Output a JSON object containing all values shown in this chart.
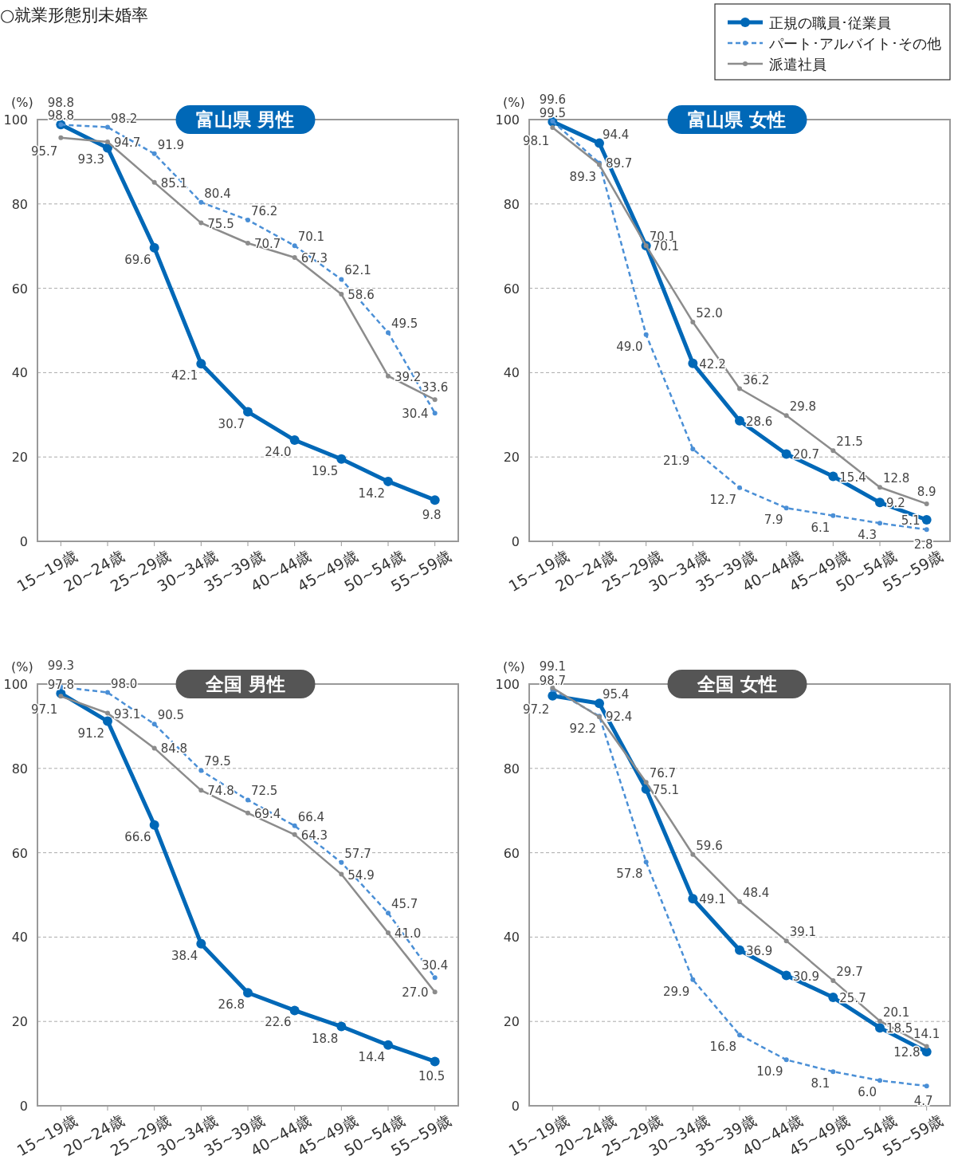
{
  "chart_data": [
    {
      "type": "line",
      "title": "富山県 男性",
      "ylabel": "(%)",
      "annotations": [
        "○就業形態別未婚率"
      ],
      "legend": "top right",
      "categories": [
        "15~19歳",
        "20~24歳",
        "25~29歳",
        "30~34歳",
        "35~39歳",
        "40~44歳",
        "45~49歳",
        "50~54歳",
        "55~59歳"
      ],
      "ylim": [
        0,
        100
      ],
      "yticks": [
        0,
        20,
        40,
        60,
        80,
        100
      ],
      "grid": "y",
      "marker": "circle",
      "series": [
        {
          "name": "正規の職員･従業員",
          "color": "#0068b7",
          "line_style": "solid",
          "values": [
            98.8,
            93.3,
            69.6,
            42.1,
            30.7,
            24.0,
            19.5,
            14.2,
            9.8
          ],
          "value_labels": [
            "98.8",
            "93.3",
            "69.6",
            "42.1",
            "30.7",
            "24.0",
            "19.5",
            "14.2",
            "9.8"
          ]
        },
        {
          "name": "パート･アルバイト･その他",
          "color": "#4a8fd6",
          "line_style": "dashed",
          "values": [
            98.8,
            98.2,
            91.9,
            80.4,
            76.2,
            70.1,
            62.1,
            49.5,
            30.4
          ],
          "value_labels": [
            "98.8",
            "98.2",
            "91.9",
            "80.4",
            "76.2",
            "70.1",
            "62.1",
            "49.5",
            "30.4"
          ]
        },
        {
          "name": "派遣社員",
          "color": "#8c8c8c",
          "line_style": "solid",
          "values": [
            95.7,
            94.7,
            85.1,
            75.5,
            70.7,
            67.3,
            58.6,
            39.2,
            33.6
          ],
          "value_labels": [
            "95.7",
            "94.7",
            "85.1",
            "75.5",
            "70.7",
            "67.3",
            "58.6",
            "39.2",
            "33.6"
          ]
        }
      ]
    },
    {
      "type": "line",
      "title": "富山県 女性",
      "ylabel": "(%)",
      "categories": [
        "15~19歳",
        "20~24歳",
        "25~29歳",
        "30~34歳",
        "35~39歳",
        "40~44歳",
        "45~49歳",
        "50~54歳",
        "55~59歳"
      ],
      "ylim": [
        0,
        100
      ],
      "yticks": [
        0,
        20,
        40,
        60,
        80,
        100
      ],
      "grid": "y",
      "marker": "circle",
      "series": [
        {
          "color": "#0068b7",
          "line_style": "solid",
          "values": [
            99.5,
            94.4,
            70.1,
            42.2,
            28.6,
            20.7,
            15.4,
            9.2,
            5.1
          ],
          "value_labels": [
            "99.5",
            "94.4",
            "70.1",
            "42.2",
            "28.6",
            "20.7",
            "15.4",
            "9.2",
            "5.1"
          ]
        },
        {
          "color": "#4a8fd6",
          "line_style": "dashed",
          "values": [
            99.6,
            89.7,
            49.0,
            21.9,
            12.7,
            7.9,
            6.1,
            4.3,
            2.8
          ],
          "value_labels": [
            "99.6",
            "89.7",
            "49.0",
            "21.9",
            "12.7",
            "7.9",
            "6.1",
            "4.3",
            "2.8"
          ]
        },
        {
          "color": "#8c8c8c",
          "line_style": "solid",
          "values": [
            98.1,
            89.3,
            70.1,
            52.0,
            36.2,
            29.8,
            21.5,
            12.8,
            8.9
          ],
          "value_labels": [
            "98.1",
            "89.3",
            "70.1",
            "52.0",
            "36.2",
            "29.8",
            "21.5",
            "12.8",
            "8.9"
          ]
        }
      ]
    },
    {
      "type": "line",
      "title": "全国 男性",
      "ylabel": "(%)",
      "categories": [
        "15~19歳",
        "20~24歳",
        "25~29歳",
        "30~34歳",
        "35~39歳",
        "40~44歳",
        "45~49歳",
        "50~54歳",
        "55~59歳"
      ],
      "ylim": [
        0,
        100
      ],
      "yticks": [
        0,
        20,
        40,
        60,
        80,
        100
      ],
      "grid": "y",
      "marker": "circle",
      "series": [
        {
          "color": "#0068b7",
          "line_style": "solid",
          "values": [
            97.8,
            91.2,
            66.6,
            38.4,
            26.8,
            22.6,
            18.8,
            14.4,
            10.5
          ],
          "value_labels": [
            "97.8",
            "91.2",
            "66.6",
            "38.4",
            "26.8",
            "22.6",
            "18.8",
            "14.4",
            "10.5"
          ]
        },
        {
          "color": "#4a8fd6",
          "line_style": "dashed",
          "values": [
            99.3,
            98.0,
            90.5,
            79.5,
            72.5,
            66.4,
            57.7,
            45.7,
            30.4
          ],
          "value_labels": [
            "99.3",
            "98.0",
            "90.5",
            "79.5",
            "72.5",
            "66.4",
            "57.7",
            "45.7",
            "30.4"
          ]
        },
        {
          "color": "#8c8c8c",
          "line_style": "solid",
          "values": [
            97.1,
            93.1,
            84.8,
            74.8,
            69.4,
            64.3,
            54.9,
            41.0,
            27.0
          ],
          "value_labels": [
            "97.1",
            "93.1",
            "84.8",
            "74.8",
            "69.4",
            "64.3",
            "54.9",
            "41.0",
            "27.0"
          ]
        }
      ]
    },
    {
      "type": "line",
      "title": "全国 女性",
      "ylabel": "(%)",
      "categories": [
        "15~19歳",
        "20~24歳",
        "25~29歳",
        "30~34歳",
        "35~39歳",
        "40~44歳",
        "45~49歳",
        "50~54歳",
        "55~59歳"
      ],
      "ylim": [
        0,
        100
      ],
      "yticks": [
        0,
        20,
        40,
        60,
        80,
        100
      ],
      "grid": "y",
      "marker": "circle",
      "series": [
        {
          "color": "#0068b7",
          "line_style": "solid",
          "values": [
            97.2,
            95.4,
            75.1,
            49.1,
            36.9,
            30.9,
            25.7,
            18.5,
            12.8
          ],
          "value_labels": [
            "97.2",
            "95.4",
            "75.1",
            "49.1",
            "36.9",
            "30.9",
            "25.7",
            "18.5",
            "12.8"
          ]
        },
        {
          "color": "#4a8fd6",
          "line_style": "dashed",
          "values": [
            98.7,
            92.4,
            57.8,
            29.9,
            16.8,
            10.9,
            8.1,
            6.0,
            4.7
          ],
          "value_labels": [
            "98.7",
            "92.4",
            "57.8",
            "29.9",
            "16.8",
            "10.9",
            "8.1",
            "6.0",
            "4.7"
          ]
        },
        {
          "color": "#8c8c8c",
          "line_style": "solid",
          "values": [
            99.1,
            92.2,
            76.7,
            59.6,
            48.4,
            39.1,
            29.7,
            20.1,
            14.1
          ],
          "value_labels": [
            "99.1",
            "92.2",
            "76.7",
            "59.6",
            "48.4",
            "39.1",
            "29.7",
            "20.1",
            "14.1"
          ]
        }
      ]
    }
  ]
}
